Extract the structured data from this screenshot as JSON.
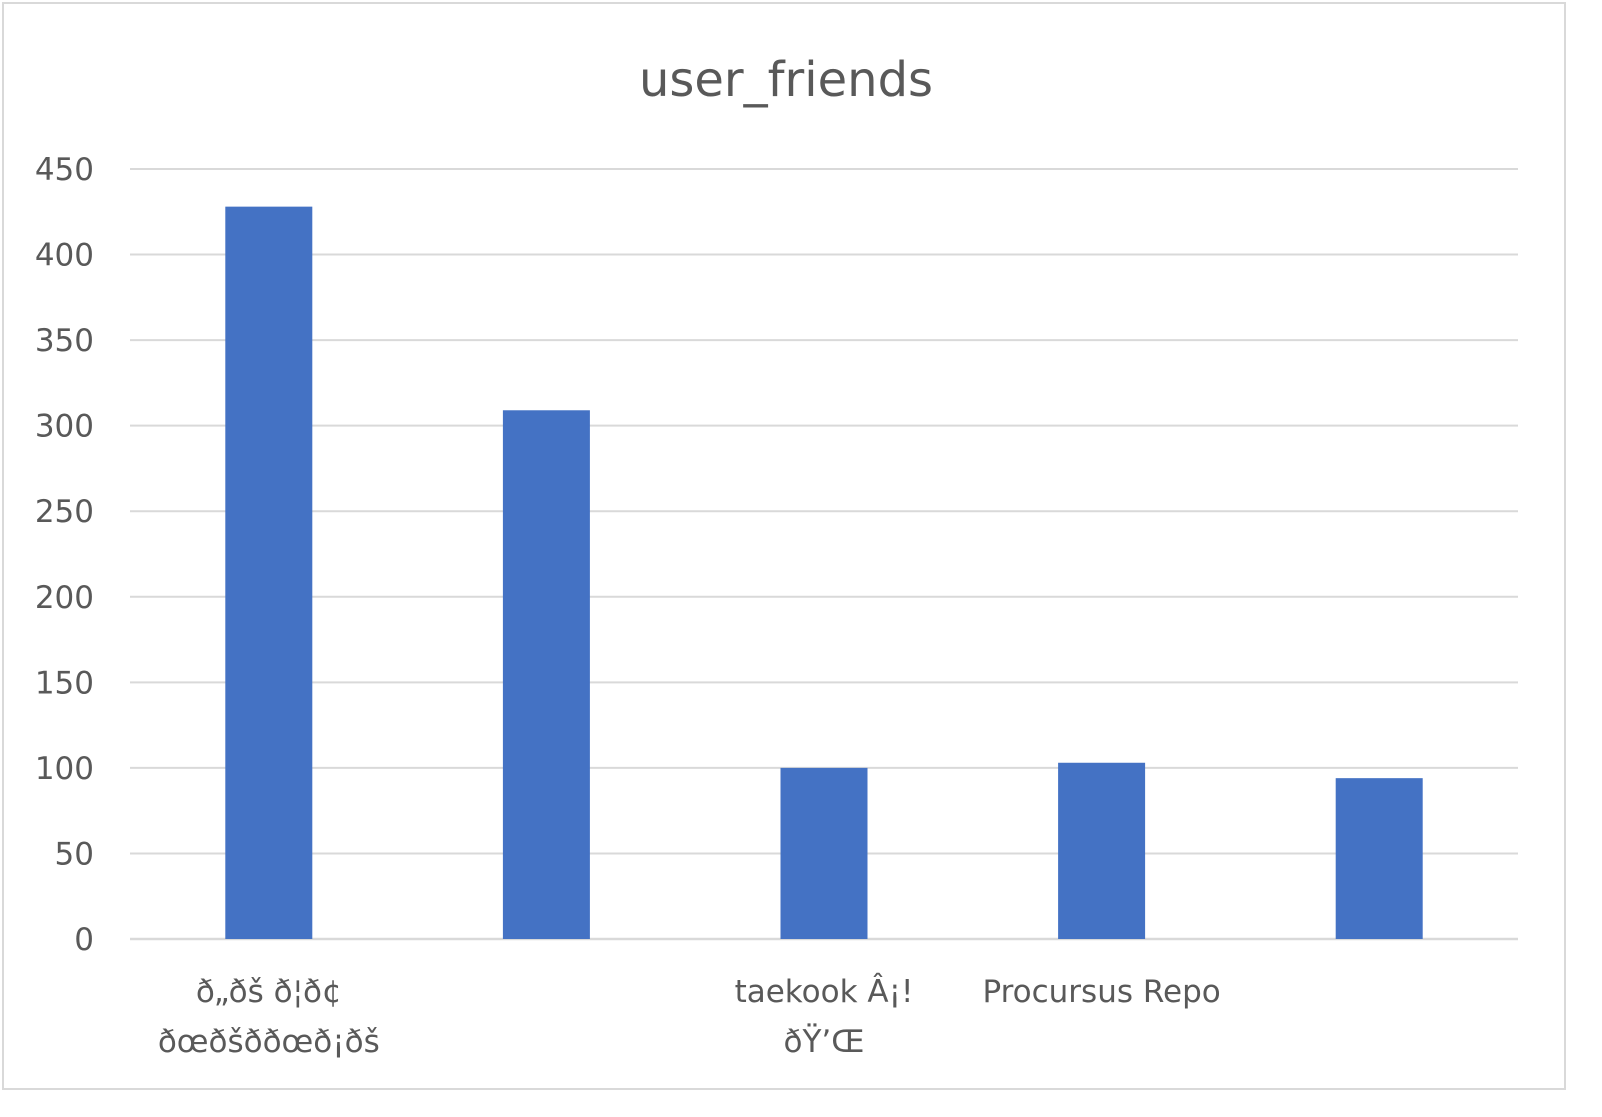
{
  "chart_data": {
    "type": "bar",
    "title": "user_friends",
    "xlabel": "",
    "ylabel": "",
    "ylim": [
      0,
      450
    ],
    "yticks": [
      0,
      50,
      100,
      150,
      200,
      250,
      300,
      350,
      400,
      450
    ],
    "grid": true,
    "legend": "none",
    "categories": [
      [
        "ð„ðš ð¦ð¢",
        "ðœðšð­ðœð¡ðš"
      ],
      [
        ""
      ],
      [
        "taekook Â¡!",
        "ðŸ’Œ"
      ],
      [
        "Procursus Repo"
      ],
      [
        ""
      ]
    ],
    "values": [
      428,
      309,
      100,
      103,
      94
    ],
    "colors": {
      "bar": "#4472c4",
      "grid": "#d9d9d9",
      "axis": "#d9d9d9",
      "text": "#595959"
    }
  }
}
